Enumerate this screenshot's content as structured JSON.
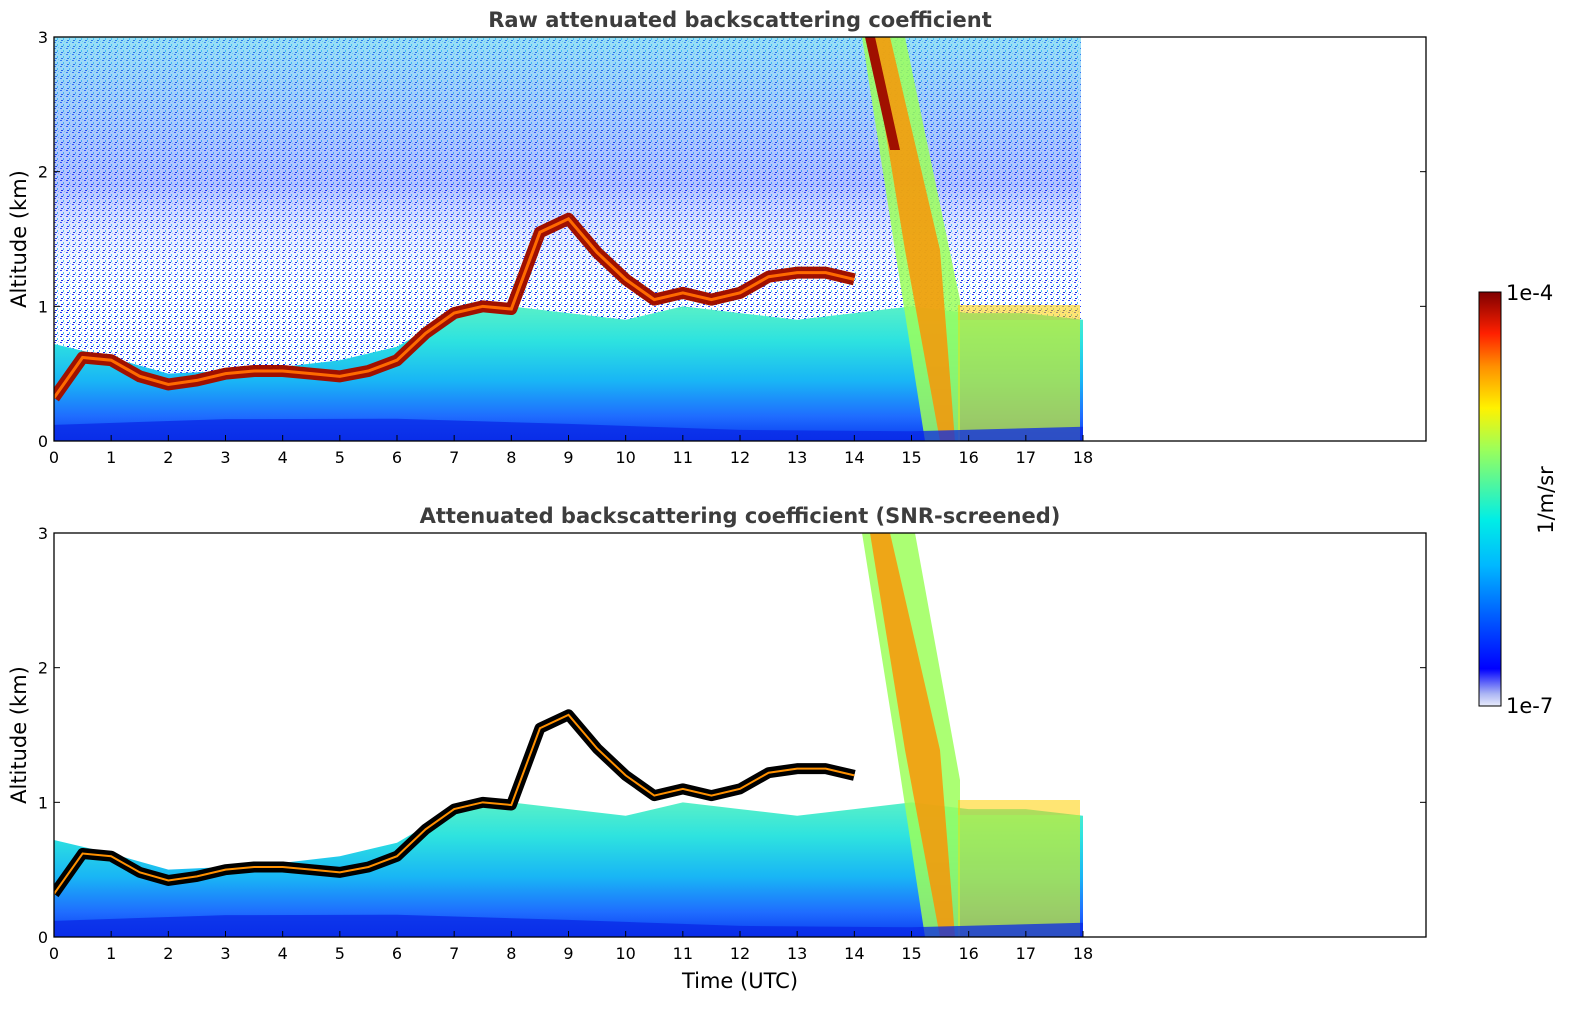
{
  "chart_data": [
    {
      "type": "heatmap",
      "title": "Raw attenuated backscattering coefficient",
      "xlabel": "",
      "ylabel": "Altitude (km)",
      "xlim": [
        0,
        24
      ],
      "ylim": [
        0,
        3
      ],
      "xticks": [
        "0",
        "1",
        "2",
        "3",
        "4",
        "5",
        "6",
        "7",
        "8",
        "9",
        "10",
        "11",
        "12",
        "13",
        "14",
        "15",
        "16",
        "17",
        "18"
      ],
      "yticks": [
        "0",
        "1",
        "2",
        "3"
      ],
      "data_end_time": 18,
      "screened": false,
      "layers": [
        {
          "name": "aerosol_top",
          "times": [
            0,
            1,
            2,
            3,
            4,
            5,
            6,
            7,
            8,
            9,
            10,
            11,
            12,
            13,
            14,
            15,
            16,
            17,
            18
          ],
          "alt": [
            0.72,
            0.62,
            0.5,
            0.52,
            0.55,
            0.6,
            0.7,
            0.95,
            1.0,
            0.95,
            0.9,
            1.0,
            0.95,
            0.9,
            0.95,
            1.0,
            0.95,
            0.95,
            0.9
          ]
        },
        {
          "name": "cloud_base",
          "times": [
            0,
            0.5,
            1,
            1.5,
            2,
            2.5,
            3,
            3.5,
            4,
            4.5,
            5,
            5.5,
            6,
            6.5,
            7,
            7.5,
            8,
            8.5,
            9,
            9.5,
            10,
            10.5,
            11,
            11.5,
            12,
            12.5,
            13,
            13.5,
            14
          ],
          "alt": [
            0.32,
            0.62,
            0.6,
            0.48,
            0.42,
            0.45,
            0.5,
            0.52,
            0.52,
            0.5,
            0.48,
            0.52,
            0.6,
            0.8,
            0.95,
            1.0,
            0.98,
            1.55,
            1.65,
            1.4,
            1.2,
            1.05,
            1.1,
            1.05,
            1.1,
            1.22,
            1.25,
            1.25,
            1.2
          ]
        }
      ]
    },
    {
      "type": "heatmap",
      "title": "Attenuated backscattering coefficient (SNR-screened)",
      "xlabel": "Time (UTC)",
      "ylabel": "Altitude (km)",
      "xlim": [
        0,
        24
      ],
      "ylim": [
        0,
        3
      ],
      "xticks": [
        "0",
        "1",
        "2",
        "3",
        "4",
        "5",
        "6",
        "7",
        "8",
        "9",
        "10",
        "11",
        "12",
        "13",
        "14",
        "15",
        "16",
        "17",
        "18"
      ],
      "yticks": [
        "0",
        "1",
        "2",
        "3"
      ],
      "data_end_time": 18,
      "screened": true
    }
  ],
  "colorbar": {
    "label": "1/m/sr",
    "max_label": "1e-4",
    "min_label": "1e-7",
    "colormap": "jet"
  }
}
